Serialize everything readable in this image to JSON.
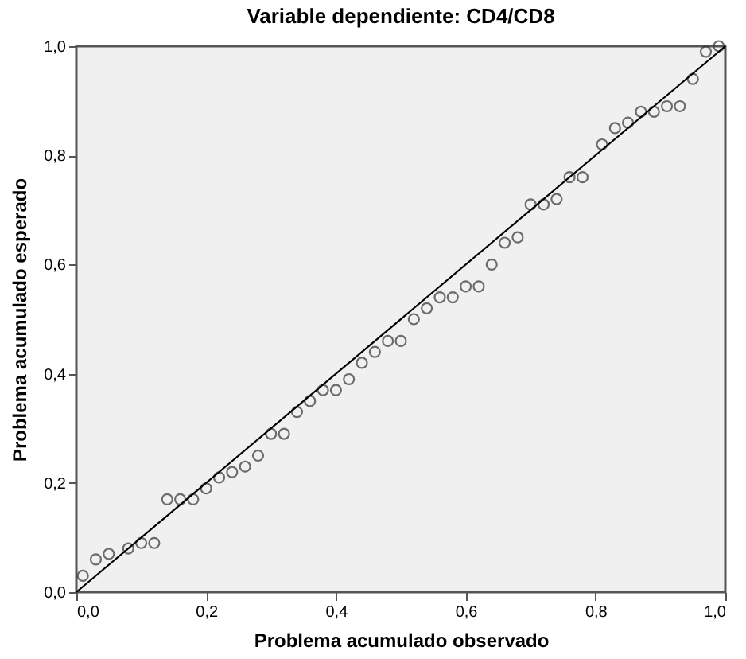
{
  "chart_data": {
    "type": "scatter",
    "title": "Variable dependiente: CD4/CD8",
    "xlabel": "Problema acumulado observado",
    "ylabel": "Problema acumulado esperado",
    "xlim": [
      0,
      1
    ],
    "ylim": [
      0,
      1
    ],
    "xticks": [
      {
        "value": 0,
        "label": "0,0"
      },
      {
        "value": 0.2,
        "label": "0,2"
      },
      {
        "value": 0.4,
        "label": "0,4"
      },
      {
        "value": 0.6,
        "label": "0,6"
      },
      {
        "value": 0.8,
        "label": "0,8"
      },
      {
        "value": 1,
        "label": "1,0"
      }
    ],
    "yticks": [
      {
        "value": 0,
        "label": "0,0"
      },
      {
        "value": 0.2,
        "label": "0,2"
      },
      {
        "value": 0.4,
        "label": "0,4"
      },
      {
        "value": 0.6,
        "label": "0,6"
      },
      {
        "value": 0.8,
        "label": "0,8"
      },
      {
        "value": 1,
        "label": "1,0"
      }
    ],
    "grid": false,
    "series": [
      {
        "marker": "circle",
        "color": "#333333",
        "x": [
          0.01,
          0.03,
          0.05,
          0.08,
          0.1,
          0.12,
          0.14,
          0.16,
          0.18,
          0.2,
          0.22,
          0.24,
          0.26,
          0.28,
          0.3,
          0.32,
          0.34,
          0.36,
          0.38,
          0.4,
          0.42,
          0.44,
          0.46,
          0.48,
          0.5,
          0.52,
          0.54,
          0.56,
          0.58,
          0.6,
          0.62,
          0.64,
          0.66,
          0.68,
          0.7,
          0.72,
          0.74,
          0.76,
          0.78,
          0.81,
          0.83,
          0.85,
          0.87,
          0.89,
          0.91,
          0.93,
          0.95,
          0.97,
          0.99
        ],
        "values": [
          0.03,
          0.06,
          0.07,
          0.08,
          0.09,
          0.09,
          0.17,
          0.17,
          0.17,
          0.19,
          0.21,
          0.22,
          0.23,
          0.25,
          0.29,
          0.29,
          0.33,
          0.35,
          0.37,
          0.37,
          0.39,
          0.42,
          0.44,
          0.46,
          0.46,
          0.5,
          0.52,
          0.54,
          0.54,
          0.56,
          0.56,
          0.6,
          0.64,
          0.65,
          0.71,
          0.71,
          0.72,
          0.76,
          0.76,
          0.82,
          0.85,
          0.86,
          0.88,
          0.88,
          0.89,
          0.89,
          0.94,
          0.99,
          1.0
        ]
      },
      {
        "type": "line",
        "color": "#000000",
        "x": [
          0,
          1
        ],
        "values": [
          0,
          1
        ],
        "line_style": "solid"
      }
    ]
  }
}
